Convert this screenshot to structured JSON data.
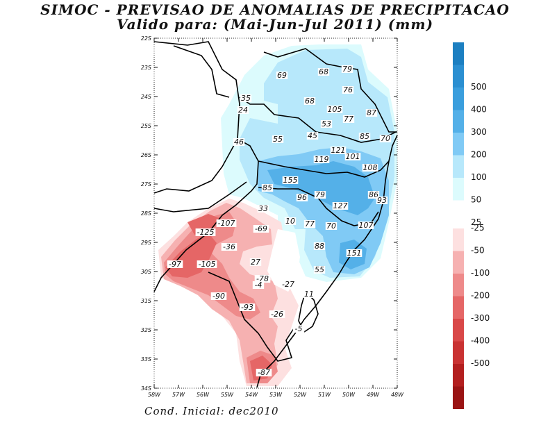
{
  "title_line1": "SIMOC - PREVISAO DE ANOMALIAS DE PRECIPITACAO",
  "title_line2": "Valido para: (Mai-Jun-Jul 2011) (mm)",
  "footer": "Cond. Inicial: dec2010",
  "lat_labels": [
    "22S",
    "23S",
    "24S",
    "25S",
    "26S",
    "27S",
    "28S",
    "29S",
    "30S",
    "31S",
    "32S",
    "33S",
    "34S"
  ],
  "lon_labels": [
    "58W",
    "57W",
    "56W",
    "55W",
    "54W",
    "53W",
    "52W",
    "51W",
    "50W",
    "49W",
    "48W"
  ],
  "colorbar": {
    "positive": [
      {
        "label": "",
        "color": "#1c7fc1"
      },
      {
        "label": "500",
        "color": "#2b8fd1"
      },
      {
        "label": "400",
        "color": "#3a9edd"
      },
      {
        "label": "300",
        "color": "#54b0e8"
      },
      {
        "label": "200",
        "color": "#80caf5"
      },
      {
        "label": "100",
        "color": "#b7e8fb"
      },
      {
        "label": "50",
        "color": "#dcfbfd"
      },
      {
        "label": "25",
        "color": "#ffffff"
      }
    ],
    "negative": [
      {
        "label": "-25",
        "color": "#fde0e0"
      },
      {
        "label": "-50",
        "color": "#f6b1b1"
      },
      {
        "label": "-100",
        "color": "#ee8a8a"
      },
      {
        "label": "-200",
        "color": "#e56666"
      },
      {
        "label": "-300",
        "color": "#d94848"
      },
      {
        "label": "-400",
        "color": "#c93232"
      },
      {
        "label": "-500",
        "color": "#b31f1f"
      },
      {
        "label": "",
        "color": "#9a1414"
      }
    ]
  },
  "value_labels": [
    "69",
    "68",
    "79",
    "76",
    "35",
    "68",
    "105",
    "87",
    "24",
    "53",
    "77",
    "46",
    "55",
    "45",
    "85",
    "70",
    "121",
    "101",
    "119",
    "108",
    "85",
    "155",
    "86",
    "79",
    "96",
    "93",
    "127",
    "33",
    "107",
    "-107",
    "10",
    "77",
    "70",
    "-125",
    "-69",
    "-36",
    "88",
    "151",
    "-97",
    "-105",
    "27",
    "-78",
    "55",
    "-4",
    "-27",
    "-90",
    "11",
    "-93",
    "-26",
    "-5",
    "-87"
  ]
}
